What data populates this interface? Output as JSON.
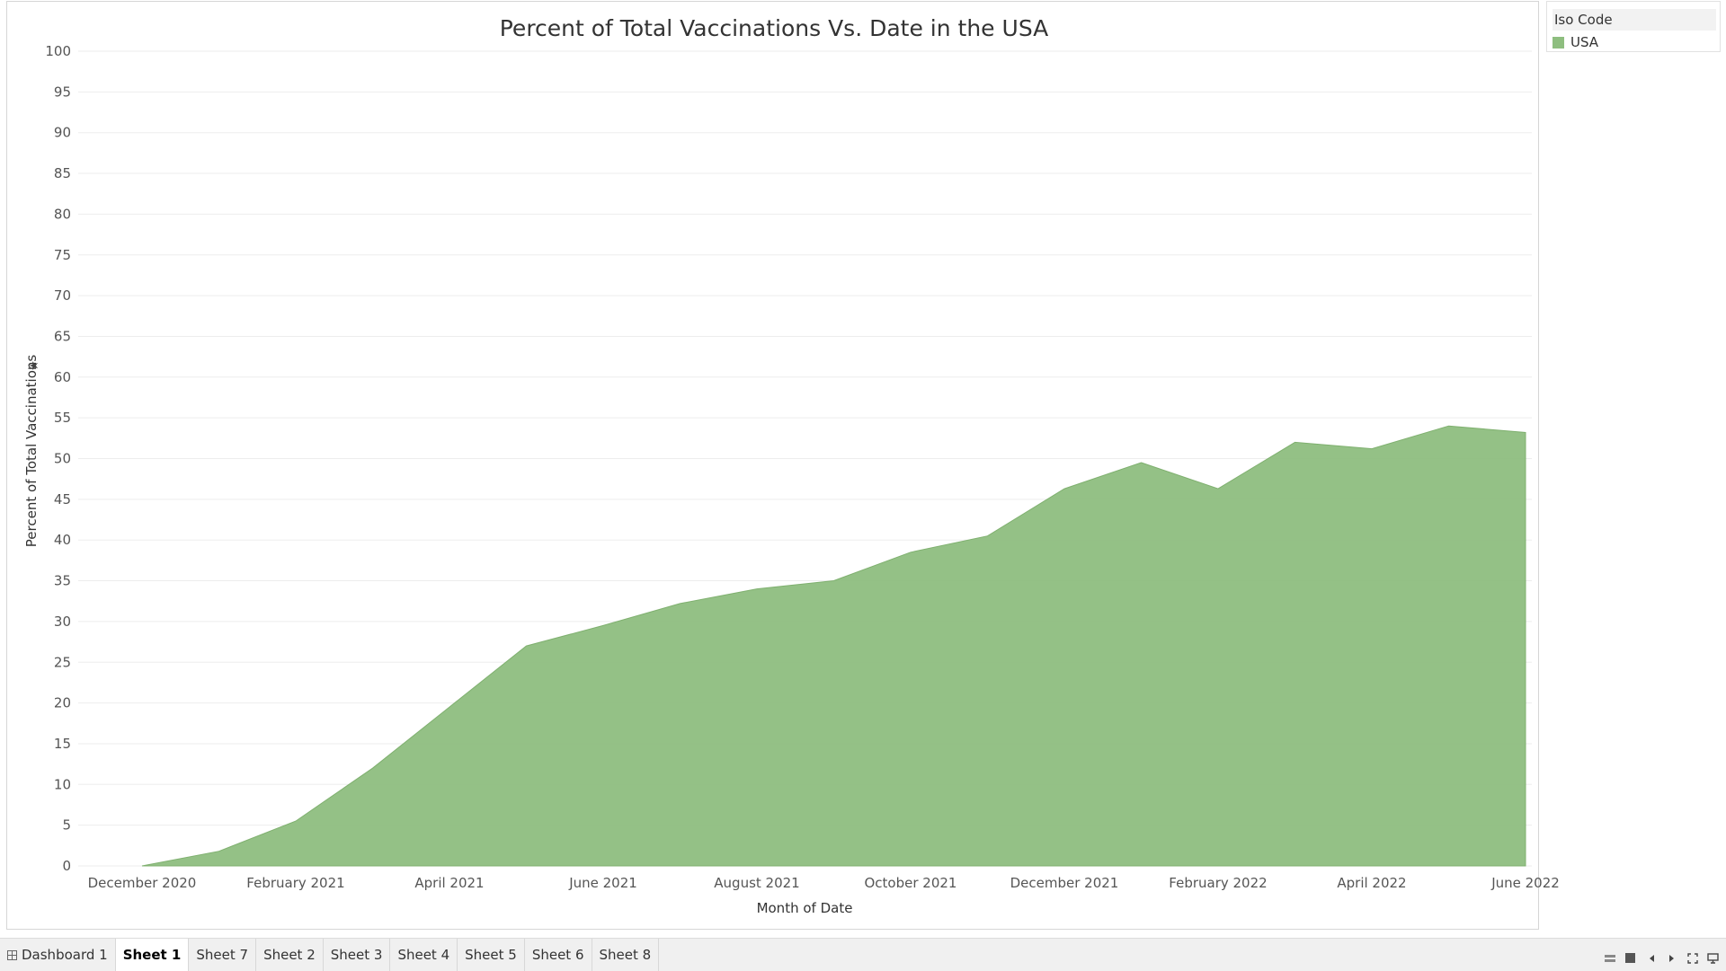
{
  "chart_data": {
    "type": "area",
    "title": "Percent of Total Vaccinations Vs. Date in the USA",
    "xlabel": "Month of Date",
    "ylabel": "Percent of Total Vaccinations",
    "x_ticks": [
      "December 2020",
      "February 2021",
      "April 2021",
      "June 2021",
      "August 2021",
      "October 2021",
      "December 2021",
      "February 2022",
      "April 2022",
      "June 2022"
    ],
    "y_ticks": [
      0,
      5,
      10,
      15,
      20,
      25,
      30,
      35,
      40,
      45,
      50,
      55,
      60,
      65,
      70,
      75,
      80,
      85,
      90,
      95,
      100
    ],
    "ylim": [
      0,
      100
    ],
    "grid": true,
    "series": [
      {
        "name": "USA",
        "color": "#8ebe7f",
        "x": [
          "2020-12",
          "2021-01",
          "2021-02",
          "2021-03",
          "2021-04",
          "2021-05",
          "2021-06",
          "2021-07",
          "2021-08",
          "2021-09",
          "2021-10",
          "2021-11",
          "2021-12",
          "2022-01",
          "2022-02",
          "2022-03",
          "2022-04",
          "2022-05",
          "2022-06"
        ],
        "values": [
          0.0,
          1.8,
          5.5,
          12.0,
          19.5,
          27.0,
          29.5,
          32.2,
          34.0,
          35.0,
          38.5,
          40.5,
          46.3,
          49.5,
          46.3,
          52.0,
          51.2,
          54.0,
          53.2
        ]
      }
    ]
  },
  "legend": {
    "title": "Iso Code",
    "items": [
      {
        "label": "USA",
        "color": "#8ebe7f"
      }
    ]
  },
  "tabs": [
    {
      "label": "Dashboard 1",
      "active": false,
      "icon": "dashboard-icon"
    },
    {
      "label": "Sheet 1",
      "active": true
    },
    {
      "label": "Sheet 7",
      "active": false
    },
    {
      "label": "Sheet 2",
      "active": false
    },
    {
      "label": "Sheet 3",
      "active": false
    },
    {
      "label": "Sheet 4",
      "active": false
    },
    {
      "label": "Sheet 5",
      "active": false
    },
    {
      "label": "Sheet 6",
      "active": false
    },
    {
      "label": "Sheet 8",
      "active": false
    }
  ],
  "nav_icons": [
    "sheet-sorter-icon",
    "filmstrip-icon",
    "previous-sheet-icon",
    "next-sheet-icon",
    "fullscreen-icon",
    "presentation-icon"
  ]
}
